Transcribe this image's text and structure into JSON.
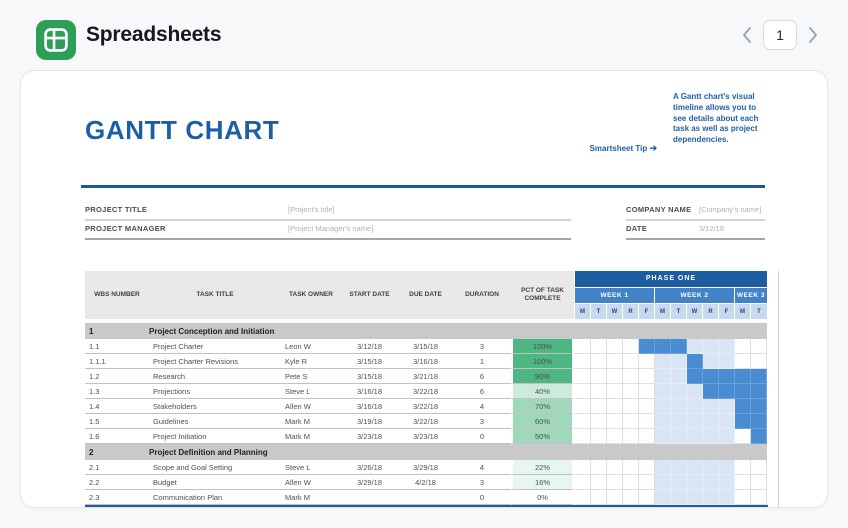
{
  "header": {
    "app_title": "Spreadsheets",
    "page_number": "1"
  },
  "colors": {
    "brand_green": "#2f9e58",
    "sheet_blue": "#1d5fa6",
    "phase_blue": "#1d5c9e",
    "week_blue": "#4282c6",
    "gantt_dark": "#4a8cd2",
    "gantt_light": "#d9e5f4",
    "green_100": "#4db683"
  },
  "sheet": {
    "title": "GANTT CHART",
    "tip_label": "Smartsheet Tip",
    "tip_arrow": "➔",
    "tip_text": "A Gantt chart's visual timeline allows you to see details about each task as well as project dependencies.",
    "fields": {
      "left": [
        {
          "label": "PROJECT TITLE",
          "value": "[Project's title]"
        },
        {
          "label": "PROJECT MANAGER",
          "value": "[Project Manager's name]"
        }
      ],
      "right": [
        {
          "label": "COMPANY NAME",
          "value": "[Company's name]"
        },
        {
          "label": "DATE",
          "value": "3/12/18"
        }
      ]
    },
    "table": {
      "columns": [
        "WBS NUMBER",
        "TASK TITLE",
        "TASK OWNER",
        "START DATE",
        "DUE DATE",
        "DURATION",
        "PCT OF TASK COMPLETE"
      ],
      "phase_label": "PHASE ONE",
      "weeks": [
        {
          "label": "WEEK 1",
          "days": [
            "M",
            "T",
            "W",
            "R",
            "F"
          ]
        },
        {
          "label": "WEEK 2",
          "days": [
            "M",
            "T",
            "W",
            "R",
            "F"
          ]
        },
        {
          "label": "WEEK 3",
          "days": [
            "M",
            "T"
          ]
        }
      ],
      "rows": [
        {
          "type": "section",
          "wbs": "1",
          "title": "Project Conception and Initiation"
        },
        {
          "type": "task",
          "wbs": "1.1",
          "title": "Project Charter",
          "owner": "Leon W",
          "start": "3/12/18",
          "due": "3/15/18",
          "duration": "3",
          "pct": "100%",
          "pct_level": "g4",
          "gantt": {
            "dark": [
              4,
              5,
              6
            ],
            "light": [
              7,
              8,
              9
            ]
          }
        },
        {
          "type": "task",
          "wbs": "1.1.1",
          "title": "Project Charter Revisions",
          "owner": "Kyle R",
          "start": "3/15/18",
          "due": "3/16/18",
          "duration": "1",
          "pct": "100%",
          "pct_level": "g4",
          "gantt": {
            "dark": [
              7
            ],
            "light": [
              5,
              6,
              8,
              9
            ]
          }
        },
        {
          "type": "task",
          "wbs": "1.2",
          "title": "Research",
          "owner": "Pete S",
          "start": "3/15/18",
          "due": "3/21/18",
          "duration": "6",
          "pct": "90%",
          "pct_level": "g4",
          "gantt": {
            "dark": [
              7,
              8,
              9,
              10,
              11
            ],
            "light": [
              5,
              6
            ]
          }
        },
        {
          "type": "task",
          "wbs": "1.3",
          "title": "Projections",
          "owner": "Steve L",
          "start": "3/16/18",
          "due": "3/22/18",
          "duration": "6",
          "pct": "40%",
          "pct_level": "g2",
          "gantt": {
            "dark": [
              8,
              9,
              10,
              11
            ],
            "light": [
              5,
              6,
              7
            ]
          }
        },
        {
          "type": "task",
          "wbs": "1.4",
          "title": "Stakeholders",
          "owner": "Allen W",
          "start": "3/16/18",
          "due": "3/22/18",
          "duration": "4",
          "pct": "70%",
          "pct_level": "g3",
          "gantt": {
            "dark": [
              10,
              11
            ],
            "light": [
              5,
              6,
              7,
              8,
              9
            ]
          }
        },
        {
          "type": "task",
          "wbs": "1.5",
          "title": "Guidelines",
          "owner": "Mark M",
          "start": "3/19/18",
          "due": "3/22/18",
          "duration": "3",
          "pct": "60%",
          "pct_level": "g3",
          "gantt": {
            "dark": [
              10,
              11
            ],
            "light": [
              5,
              6,
              7,
              8,
              9
            ]
          }
        },
        {
          "type": "task",
          "wbs": "1.6",
          "title": "Project Initiation",
          "owner": "Mark M",
          "start": "3/23/18",
          "due": "3/23/18",
          "duration": "0",
          "pct": "50%",
          "pct_level": "g3",
          "gantt": {
            "dark": [
              11
            ],
            "light": [
              5,
              6,
              7,
              8,
              9
            ]
          }
        },
        {
          "type": "section",
          "wbs": "2",
          "title": "Project Definition and Planning"
        },
        {
          "type": "task",
          "wbs": "2.1",
          "title": "Scope and Goal Setting",
          "owner": "Steve L",
          "start": "3/26/18",
          "due": "3/29/18",
          "duration": "4",
          "pct": "22%",
          "pct_level": "g1",
          "gantt": {
            "dark": [],
            "light": [
              5,
              6,
              7,
              8,
              9
            ]
          }
        },
        {
          "type": "task",
          "wbs": "2.2",
          "title": "Budget",
          "owner": "Allen W",
          "start": "3/29/18",
          "due": "4/2/18",
          "duration": "3",
          "pct": "16%",
          "pct_level": "g1",
          "gantt": {
            "dark": [],
            "light": [
              5,
              6,
              7,
              8,
              9
            ]
          }
        },
        {
          "type": "task",
          "wbs": "2.3",
          "title": "Communication Plan",
          "owner": "Mark M",
          "start": "",
          "due": "",
          "duration": "0",
          "pct": "0%",
          "pct_level": "g0",
          "gantt": {
            "dark": [],
            "light": [
              5,
              6,
              7,
              8,
              9
            ]
          }
        }
      ]
    }
  }
}
